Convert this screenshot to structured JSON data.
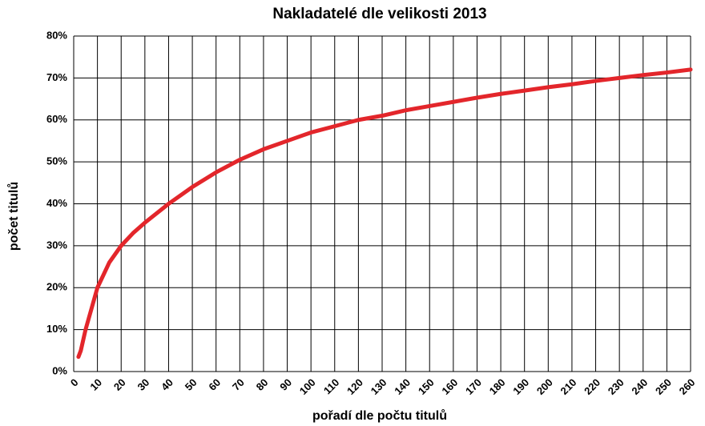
{
  "chart_data": {
    "type": "line",
    "title": "Nakladatelé dle velikosti 2013",
    "x_label": "pořadí dle počtu titulů",
    "y_label": "počet titulů",
    "series": [
      {
        "color": "#e3262b",
        "x": [
          2,
          3,
          5,
          8,
          10,
          15,
          20,
          25,
          30,
          40,
          50,
          60,
          70,
          80,
          90,
          100,
          110,
          120,
          130,
          140,
          150,
          160,
          170,
          180,
          190,
          200,
          210,
          220,
          230,
          240,
          250,
          260
        ],
        "values": [
          3.5,
          5,
          10,
          16,
          20,
          26,
          30,
          33,
          35.5,
          40,
          44,
          47.5,
          50.5,
          53,
          55,
          57,
          58.5,
          60,
          61,
          62.3,
          63.3,
          64.3,
          65.3,
          66.2,
          67,
          67.8,
          68.5,
          69.3,
          70,
          70.7,
          71.3,
          72
        ]
      }
    ],
    "xlim": [
      0,
      260
    ],
    "ylim": [
      0,
      80
    ],
    "xticks": [
      0,
      10,
      20,
      30,
      40,
      50,
      60,
      70,
      80,
      90,
      100,
      110,
      120,
      130,
      140,
      150,
      160,
      170,
      180,
      190,
      200,
      210,
      220,
      230,
      240,
      250,
      260
    ],
    "yticks": [
      {
        "value": 0,
        "label": "0%"
      },
      {
        "value": 10,
        "label": "10%"
      },
      {
        "value": 20,
        "label": "20%"
      },
      {
        "value": 30,
        "label": "30%"
      },
      {
        "value": 40,
        "label": "40%"
      },
      {
        "value": 50,
        "label": "50%"
      },
      {
        "value": 60,
        "label": "60%"
      },
      {
        "value": 70,
        "label": "70%"
      },
      {
        "value": 80,
        "label": "80%"
      }
    ],
    "grid": true
  }
}
